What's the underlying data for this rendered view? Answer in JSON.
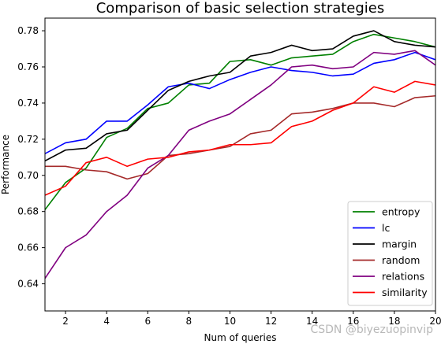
{
  "chart_data": {
    "type": "line",
    "title": "Comparison of basic selection strategies",
    "xlabel": "Num of queries",
    "ylabel": "Performance",
    "xlim": [
      1,
      20
    ],
    "ylim": [
      0.625,
      0.787
    ],
    "xticks": [
      2,
      4,
      6,
      8,
      10,
      12,
      14,
      16,
      18,
      20
    ],
    "yticks": [
      0.64,
      0.66,
      0.68,
      0.7,
      0.72,
      0.74,
      0.76,
      0.78
    ],
    "ytick_labels": [
      "0.64",
      "0.66",
      "0.68",
      "0.70",
      "0.72",
      "0.74",
      "0.76",
      "0.78"
    ],
    "grid": false,
    "legend_position": "lower-right",
    "x": [
      1,
      2,
      3,
      4,
      5,
      6,
      7,
      8,
      9,
      10,
      11,
      12,
      13,
      14,
      15,
      16,
      17,
      18,
      19,
      20
    ],
    "series": [
      {
        "name": "entropy",
        "color": "#008000",
        "values": [
          0.681,
          0.696,
          0.704,
          0.721,
          0.726,
          0.737,
          0.74,
          0.75,
          0.751,
          0.763,
          0.764,
          0.761,
          0.765,
          0.766,
          0.767,
          0.774,
          0.778,
          0.776,
          0.774,
          0.771
        ]
      },
      {
        "name": "lc",
        "color": "#0000ff",
        "values": [
          0.712,
          0.718,
          0.72,
          0.73,
          0.73,
          0.739,
          0.749,
          0.751,
          0.748,
          0.753,
          0.757,
          0.76,
          0.758,
          0.757,
          0.755,
          0.756,
          0.762,
          0.764,
          0.768,
          0.764
        ]
      },
      {
        "name": "margin",
        "color": "#000000",
        "values": [
          0.708,
          0.714,
          0.715,
          0.723,
          0.725,
          0.736,
          0.747,
          0.752,
          0.755,
          0.757,
          0.766,
          0.768,
          0.772,
          0.769,
          0.77,
          0.777,
          0.78,
          0.774,
          0.772,
          0.771
        ]
      },
      {
        "name": "random",
        "color": "#a52a2a",
        "values": [
          0.705,
          0.705,
          0.703,
          0.702,
          0.698,
          0.701,
          0.711,
          0.712,
          0.714,
          0.716,
          0.723,
          0.725,
          0.734,
          0.735,
          0.737,
          0.74,
          0.74,
          0.738,
          0.743,
          0.744
        ]
      },
      {
        "name": "relations",
        "color": "#800080",
        "values": [
          0.643,
          0.66,
          0.667,
          0.68,
          0.689,
          0.704,
          0.711,
          0.725,
          0.73,
          0.734,
          0.742,
          0.75,
          0.76,
          0.761,
          0.759,
          0.76,
          0.768,
          0.767,
          0.769,
          0.761
        ]
      },
      {
        "name": "similarity",
        "color": "#ff0000",
        "values": [
          0.689,
          0.694,
          0.707,
          0.71,
          0.705,
          0.709,
          0.71,
          0.713,
          0.714,
          0.717,
          0.717,
          0.718,
          0.727,
          0.73,
          0.736,
          0.74,
          0.749,
          0.746,
          0.752,
          0.75
        ]
      }
    ]
  },
  "watermark": "CSDN @biyezuopinvip"
}
